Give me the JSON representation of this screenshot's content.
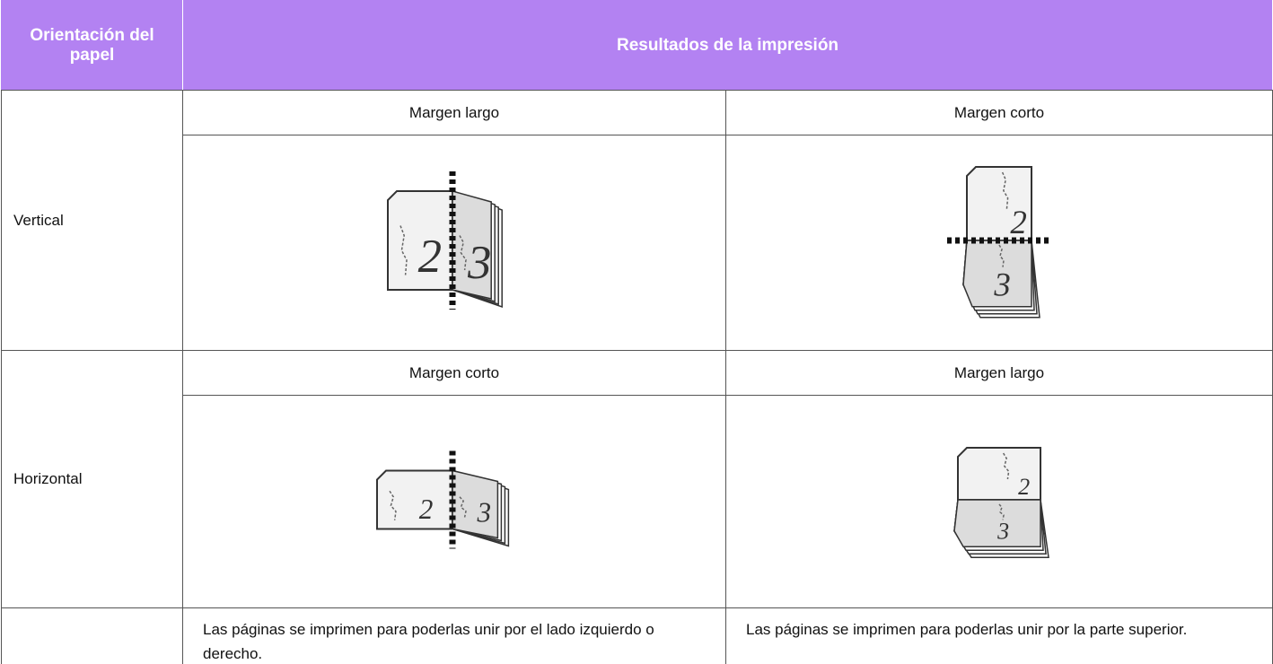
{
  "table": {
    "header": [
      "Orientación del papel",
      "Resultados de la impresión"
    ],
    "rows": [
      {
        "orientation": "Vertical",
        "options": [
          {
            "label": "Margen largo",
            "pages": [
              "2",
              "3"
            ]
          },
          {
            "label": "Margen corto",
            "pages": [
              "2",
              "3"
            ]
          }
        ]
      },
      {
        "orientation": "Horizontal",
        "options": [
          {
            "label": "Margen corto",
            "pages": [
              "2",
              "3"
            ]
          },
          {
            "label": "Margen largo",
            "pages": [
              "2",
              "3"
            ]
          }
        ]
      }
    ],
    "notes": [
      "Las páginas se imprimen para poderlas unir por el lado izquierdo o derecho.",
      "Las páginas se imprimen para poderlas unir por la parte superior."
    ]
  }
}
